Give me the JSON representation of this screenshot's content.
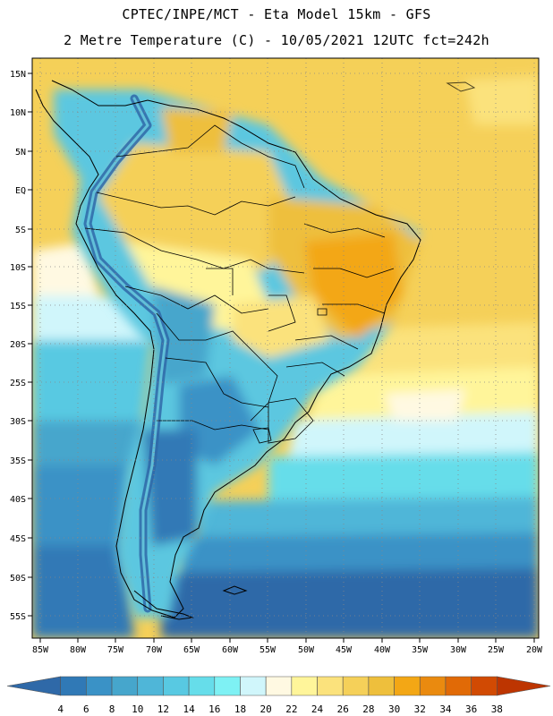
{
  "header": {
    "line1": "CPTEC/INPE/MCT -  Eta Model 15km - GFS",
    "line2": "2 Metre Temperature (C) - 10/05/2021 12UTC fct=242h"
  },
  "map": {
    "variable": "2 Metre Temperature",
    "units": "C",
    "lat_labels": [
      "15N",
      "10N",
      "5N",
      "EQ",
      "5S",
      "10S",
      "15S",
      "20S",
      "25S",
      "30S",
      "35S",
      "40S",
      "45S",
      "50S",
      "55S"
    ],
    "lon_labels": [
      "85W",
      "80W",
      "75W",
      "70W",
      "65W",
      "60W",
      "55W",
      "50W",
      "45W",
      "40W",
      "35W",
      "30W",
      "25W",
      "20W"
    ]
  },
  "colorbar": {
    "ticks": [
      "4",
      "6",
      "8",
      "10",
      "12",
      "14",
      "16",
      "18",
      "20",
      "22",
      "24",
      "26",
      "28",
      "30",
      "32",
      "34",
      "36",
      "38"
    ],
    "colors": [
      "#2f69a8",
      "#3079b6",
      "#3a92c6",
      "#46a6cc",
      "#4fb6d8",
      "#58c9e2",
      "#66ddea",
      "#7ef1f4",
      "#d0f6fb",
      "#fff9e2",
      "#fff59a",
      "#fbe27c",
      "#f5d059",
      "#eebf3c",
      "#f3a715",
      "#ea8a0f",
      "#e16a06",
      "#d14a03",
      "#bd3501"
    ]
  }
}
